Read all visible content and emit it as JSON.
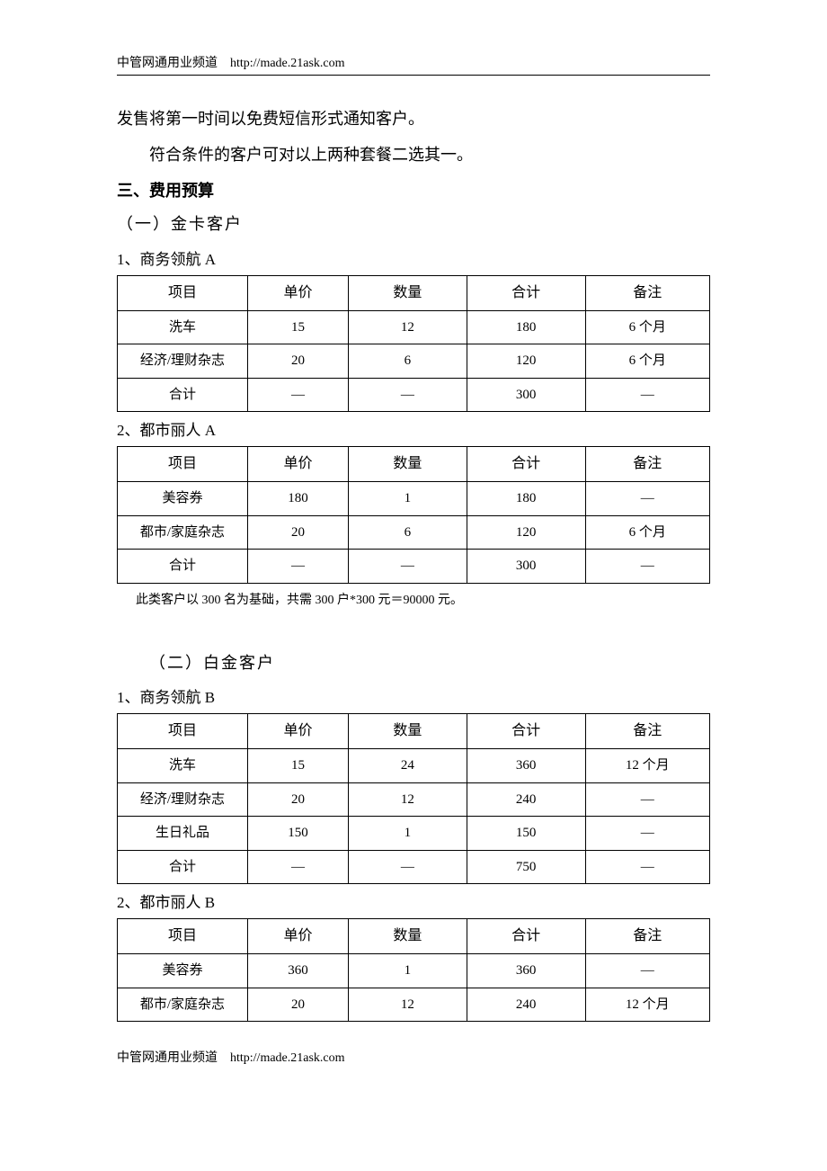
{
  "header": {
    "site": "中管网通用业频道",
    "url": "http://made.21ask.com"
  },
  "body": {
    "line1": "发售将第一时间以免费短信形式通知客户。",
    "line2": "符合条件的客户可对以上两种套餐二选其一。"
  },
  "section3": {
    "title": "三、费用预算",
    "sub1": {
      "title": "（一）金卡客户",
      "table1": {
        "title": "1、商务领航 A",
        "columns": [
          "项目",
          "单价",
          "数量",
          "合计",
          "备注"
        ],
        "rows": [
          [
            "洗车",
            "15",
            "12",
            "180",
            "6 个月"
          ],
          [
            "经济/理财杂志",
            "20",
            "6",
            "120",
            "6 个月"
          ],
          [
            "合计",
            "—",
            "—",
            "300",
            "—"
          ]
        ]
      },
      "table2": {
        "title": "2、都市丽人 A",
        "columns": [
          "项目",
          "单价",
          "数量",
          "合计",
          "备注"
        ],
        "rows": [
          [
            "美容券",
            "180",
            "1",
            "180",
            "—"
          ],
          [
            "都市/家庭杂志",
            "20",
            "6",
            "120",
            "6 个月"
          ],
          [
            "合计",
            "—",
            "—",
            "300",
            "—"
          ]
        ]
      },
      "note": "此类客户以 300 名为基础，共需 300 户*300 元＝90000 元。"
    },
    "sub2": {
      "title": "（二）白金客户",
      "table1": {
        "title": "1、商务领航 B",
        "columns": [
          "项目",
          "单价",
          "数量",
          "合计",
          "备注"
        ],
        "rows": [
          [
            "洗车",
            "15",
            "24",
            "360",
            "12 个月"
          ],
          [
            "经济/理财杂志",
            "20",
            "12",
            "240",
            "—"
          ],
          [
            "生日礼品",
            "150",
            "1",
            "150",
            "—"
          ],
          [
            "合计",
            "—",
            "—",
            "750",
            "—"
          ]
        ]
      },
      "table2": {
        "title": "2、都市丽人 B",
        "columns": [
          "项目",
          "单价",
          "数量",
          "合计",
          "备注"
        ],
        "rows": [
          [
            "美容券",
            "360",
            "1",
            "360",
            "—"
          ],
          [
            "都市/家庭杂志",
            "20",
            "12",
            "240",
            "12 个月"
          ]
        ]
      }
    }
  },
  "footer": {
    "site": "中管网通用业频道",
    "url": "http://made.21ask.com"
  },
  "style": {
    "body_width": 920,
    "body_height": 1302,
    "font_family": "SimSun",
    "text_color": "#000000",
    "bg_color": "#ffffff",
    "border_color": "#000000",
    "header_fontsize": 14,
    "body_fontsize": 18,
    "table_fontsize": 15,
    "col_widths_pct": [
      22,
      17,
      20,
      20,
      21
    ]
  }
}
